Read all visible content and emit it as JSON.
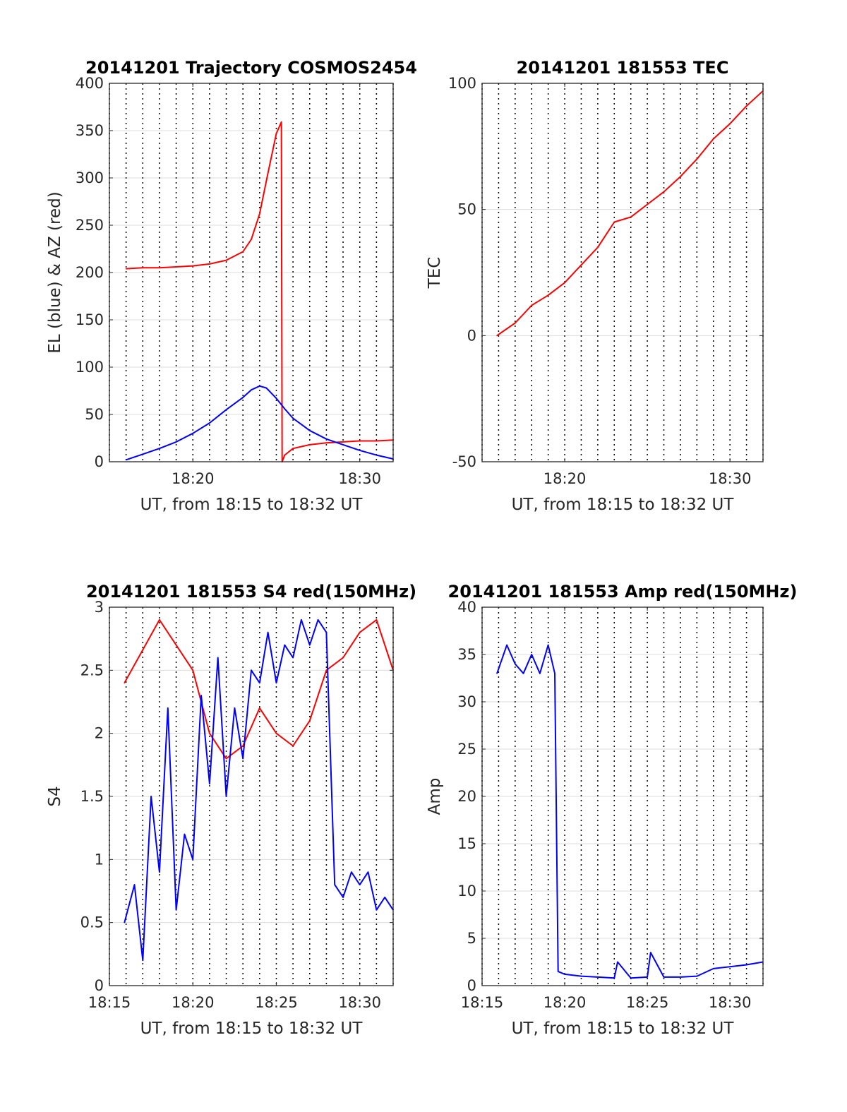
{
  "chart_data": [
    {
      "type": "line",
      "title": "20141201 Trajectory COSMOS2454",
      "xlabel": "UT, from 18:15 to 18:32 UT",
      "ylabel": "EL (blue) & AZ (red)",
      "xlim": [
        "18:15",
        "18:32"
      ],
      "ylim": [
        0,
        400
      ],
      "yticks": [
        "0",
        "50",
        "100",
        "150",
        "200",
        "250",
        "300",
        "350",
        "400"
      ],
      "xticks": [
        "18:20",
        "18:30"
      ],
      "grid": true,
      "series": [
        {
          "color": "#ff0000",
          "x": [
            "18:16",
            "18:17",
            "18:18",
            "18:19",
            "18:20",
            "18:21",
            "18:22",
            "18:23",
            "18:23.5",
            "18:24",
            "18:24.5",
            "18:25",
            "18:25.3",
            "18:25.35",
            "18:25.5",
            "18:26",
            "18:27",
            "18:28",
            "18:29",
            "18:30",
            "18:31",
            "18:32"
          ],
          "y": [
            204,
            205,
            205,
            206,
            207,
            209,
            213,
            222,
            235,
            262,
            305,
            347,
            359,
            0,
            7,
            14,
            18,
            20,
            21,
            22,
            22,
            23
          ]
        },
        {
          "color": "#0000ff",
          "x": [
            "18:16",
            "18:17",
            "18:18",
            "18:19",
            "18:20",
            "18:21",
            "18:22",
            "18:23",
            "18:23.5",
            "18:24",
            "18:24.4",
            "18:25",
            "18:25.5",
            "18:26",
            "18:27",
            "18:28",
            "18:29",
            "18:30",
            "18:31",
            "18:32"
          ],
          "y": [
            2,
            8,
            14,
            21,
            30,
            41,
            55,
            68,
            76,
            80,
            78,
            67,
            56,
            46,
            33,
            24,
            18,
            12,
            7,
            3
          ]
        }
      ]
    },
    {
      "type": "line",
      "title": "20141201 181553 TEC",
      "xlabel": "UT, from 18:15 to 18:32 UT",
      "ylabel": "TEC",
      "xlim": [
        "18:15",
        "18:32"
      ],
      "ylim": [
        -50,
        100
      ],
      "yticks": [
        "-50",
        "0",
        "50",
        "100"
      ],
      "xticks": [
        "18:20",
        "18:30"
      ],
      "grid": true,
      "series": [
        {
          "color": "#ff0000",
          "x": [
            "18:15.9",
            "18:17",
            "18:18",
            "18:19",
            "18:20",
            "18:21",
            "18:22",
            "18:23",
            "18:24",
            "18:25",
            "18:26",
            "18:27",
            "18:28",
            "18:29",
            "18:30",
            "18:31",
            "18:32"
          ],
          "y": [
            0,
            5,
            12,
            16,
            21,
            28,
            35,
            45,
            47,
            52,
            57,
            63,
            70,
            78,
            84,
            91,
            97
          ]
        }
      ]
    },
    {
      "type": "line",
      "title": "20141201 181553 S4 red(150MHz)",
      "xlabel": "UT, from 18:15 to 18:32 UT",
      "ylabel": "S4",
      "xlim": [
        "18:15",
        "18:32"
      ],
      "ylim": [
        0,
        3
      ],
      "yticks": [
        "0",
        "0.5",
        "1",
        "1.5",
        "2",
        "2.5",
        "3"
      ],
      "xticks": [
        "18:15",
        "18:20",
        "18:25",
        "18:30"
      ],
      "grid": true,
      "series": [
        {
          "color": "#ff0000",
          "x": [
            "18:15.9",
            "18:18",
            "18:20",
            "18:21",
            "18:22",
            "18:23",
            "18:24",
            "18:25",
            "18:26",
            "18:27",
            "18:28",
            "18:29",
            "18:30",
            "18:31",
            "18:32"
          ],
          "y": [
            2.4,
            2.9,
            2.5,
            2.0,
            1.8,
            1.9,
            2.2,
            2.0,
            1.9,
            2.1,
            2.5,
            2.6,
            2.8,
            2.9,
            2.5
          ]
        },
        {
          "color": "#0000ff",
          "x": [
            "18:15.9",
            "18:16.5",
            "18:17",
            "18:17.5",
            "18:18",
            "18:18.5",
            "18:19",
            "18:19.5",
            "18:20",
            "18:20.5",
            "18:21",
            "18:21.5",
            "18:22",
            "18:22.5",
            "18:23",
            "18:23.5",
            "18:24",
            "18:24.5",
            "18:25",
            "18:25.5",
            "18:26",
            "18:26.5",
            "18:27",
            "18:27.5",
            "18:28",
            "18:28.5",
            "18:29",
            "18:29.5",
            "18:30",
            "18:30.5",
            "18:31",
            "18:31.5",
            "18:32"
          ],
          "y": [
            0.5,
            0.8,
            0.2,
            1.5,
            0.9,
            2.2,
            0.6,
            1.2,
            1.0,
            2.3,
            1.6,
            2.6,
            1.5,
            2.2,
            1.8,
            2.5,
            2.4,
            2.8,
            2.4,
            2.7,
            2.6,
            2.9,
            2.7,
            2.9,
            2.8,
            0.8,
            0.7,
            0.9,
            0.8,
            0.9,
            0.6,
            0.7,
            0.6
          ]
        }
      ]
    },
    {
      "type": "line",
      "title": "20141201 181553 Amp red(150MHz)",
      "xlabel": "UT, from 18:15 to 18:32 UT",
      "ylabel": "Amp",
      "xlim": [
        "18:15",
        "18:32"
      ],
      "ylim": [
        0,
        40
      ],
      "yticks": [
        "0",
        "5",
        "10",
        "15",
        "20",
        "25",
        "30",
        "35",
        "40"
      ],
      "xticks": [
        "18:15",
        "18:20",
        "18:25",
        "18:30"
      ],
      "grid": true,
      "series": [
        {
          "color": "#0000ff",
          "x": [
            "18:15.9",
            "18:16.5",
            "18:17",
            "18:17.5",
            "18:18",
            "18:18.5",
            "18:19",
            "18:19.4",
            "18:19.6",
            "18:20",
            "18:21",
            "18:22",
            "18:23",
            "18:23.2",
            "18:24",
            "18:25",
            "18:25.2",
            "18:26",
            "18:27",
            "18:28",
            "18:29",
            "18:30",
            "18:31",
            "18:32"
          ],
          "y": [
            33,
            36,
            34,
            33,
            35,
            33,
            36,
            33,
            1.5,
            1.2,
            1.0,
            0.9,
            0.8,
            2.5,
            0.8,
            0.9,
            3.5,
            0.9,
            0.9,
            1.0,
            1.8,
            2.0,
            2.2,
            2.5
          ]
        }
      ]
    }
  ]
}
